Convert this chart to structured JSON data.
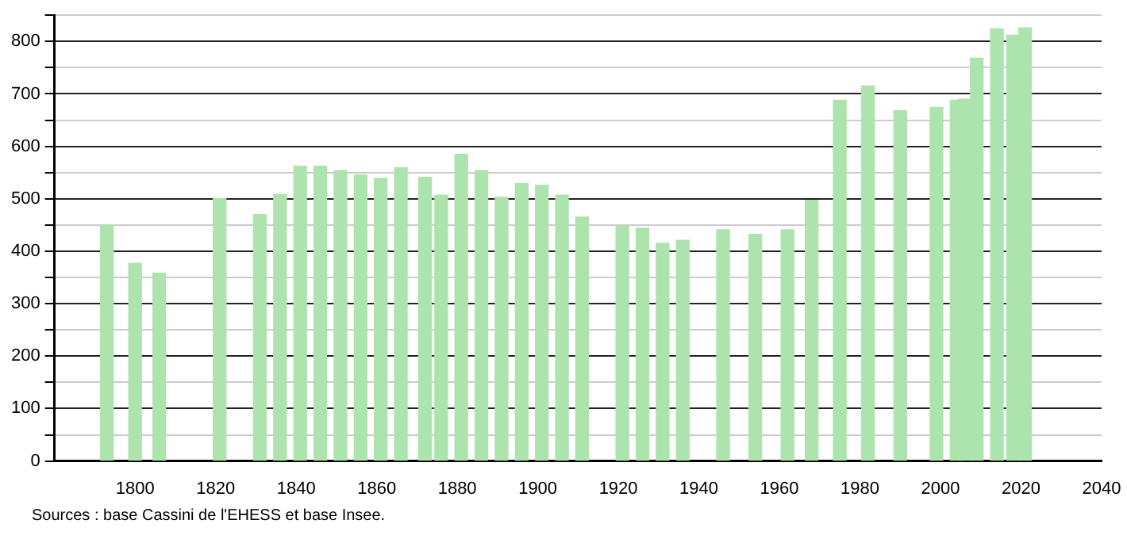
{
  "chart_data": {
    "type": "bar",
    "x": [
      1793,
      1800,
      1806,
      1821,
      1831,
      1836,
      1841,
      1846,
      1851,
      1856,
      1861,
      1866,
      1872,
      1876,
      1881,
      1886,
      1891,
      1896,
      1901,
      1906,
      1911,
      1921,
      1926,
      1931,
      1936,
      1946,
      1954,
      1962,
      1968,
      1975,
      1982,
      1990,
      1999,
      2004,
      2006,
      2009,
      2014,
      2018,
      2021
    ],
    "values": [
      449,
      377,
      358,
      500,
      470,
      508,
      562,
      562,
      554,
      545,
      539,
      559,
      541,
      507,
      585,
      554,
      503,
      529,
      526,
      507,
      465,
      448,
      444,
      415,
      421,
      441,
      432,
      441,
      497,
      688,
      715,
      668,
      674,
      688,
      690,
      768,
      824,
      812,
      826
    ],
    "color": "#ade3ad",
    "xlim": [
      1780,
      2040
    ],
    "xticks": [
      1800,
      1820,
      1840,
      1860,
      1880,
      1900,
      1920,
      1940,
      1960,
      1980,
      2000,
      2020,
      2040
    ],
    "ylim": [
      0,
      850
    ],
    "yticks": [
      0,
      {
        "value": 50,
        "label": null
      },
      100,
      {
        "value": 150,
        "label": null
      },
      200,
      {
        "value": 250,
        "label": null
      },
      300,
      {
        "value": 350,
        "label": null
      },
      400,
      {
        "value": 450,
        "label": null
      },
      500,
      {
        "value": 550,
        "label": null
      },
      600,
      {
        "value": 650,
        "label": null
      },
      700,
      {
        "value": 750,
        "label": null
      },
      800,
      {
        "value": 850,
        "label": null
      }
    ],
    "grid": "y",
    "annotations": [
      "Sources : base Cassini de l'EHESS et base Insee."
    ]
  }
}
